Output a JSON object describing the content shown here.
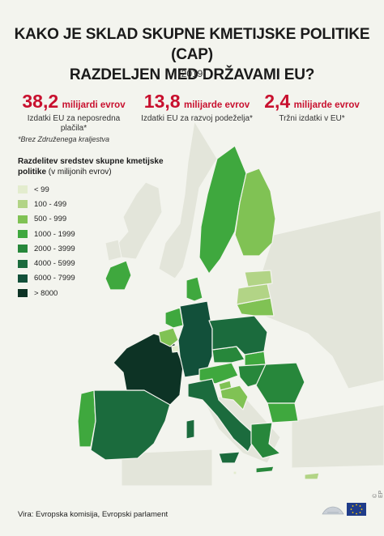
{
  "title_line1": "KAKO JE SKLAD SKUPNE KMETIJSKE POLITIKE (CAP)",
  "title_line2": "RAZDELJEN MED DRŽAVAMI EU?",
  "year": "(2019)",
  "stats": [
    {
      "number": "38,2",
      "unit": "milijardi evrov",
      "desc1": "Izdatki EU za neposredna",
      "desc2": "plačila*"
    },
    {
      "number": "13,8",
      "unit": "milijarde evrov",
      "desc1": "Izdatki EU za razvoj podeželja*",
      "desc2": ""
    },
    {
      "number": "2,4",
      "unit": "milijarde evrov",
      "desc1": "Tržni izdatki v EU*",
      "desc2": ""
    }
  ],
  "footnote": "*Brez Združenega kraljestva",
  "legend": {
    "title_bold": "Razdelitev sredstev skupne kmetijske politike",
    "title_rest": " (v milijonih evrov)",
    "items": [
      {
        "label": "< 99",
        "color": "#e3ecce"
      },
      {
        "label": "100 - 499",
        "color": "#b2d486"
      },
      {
        "label": "500 - 999",
        "color": "#80c254"
      },
      {
        "label": "1000 - 1999",
        "color": "#3fa83e"
      },
      {
        "label": "2000 - 3999",
        "color": "#27873b"
      },
      {
        "label": "4000 - 5999",
        "color": "#1b6b3d"
      },
      {
        "label": "6000 - 7999",
        "color": "#12503a"
      },
      {
        "label": "> 8000",
        "color": "#0d3325"
      }
    ]
  },
  "source": "Vira: Evropska komisija, Evropski parlament",
  "copyright": "© EP",
  "colors": {
    "accent_red": "#c8102e",
    "background": "#f3f4ee"
  }
}
